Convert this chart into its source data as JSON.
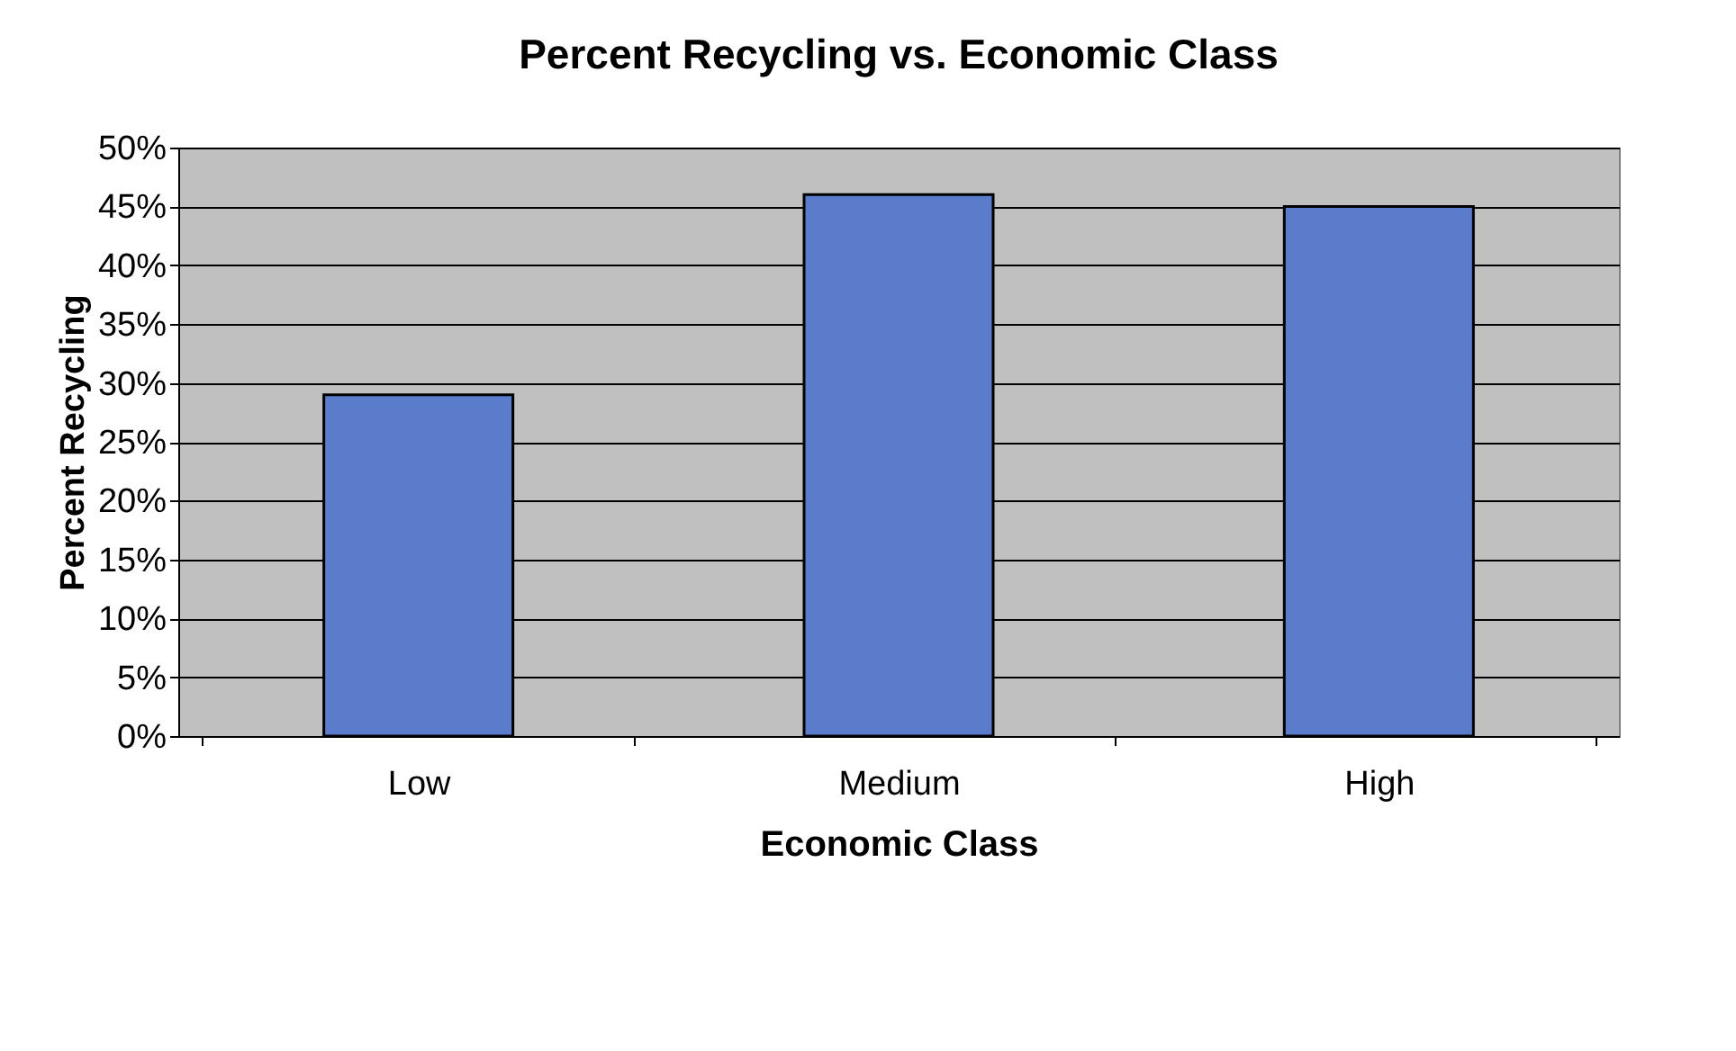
{
  "chart_data": {
    "type": "bar",
    "title": "Percent Recycling vs. Economic Class",
    "xlabel": "Economic Class",
    "ylabel": "Percent Recycling",
    "categories": [
      "Low",
      "Medium",
      "High"
    ],
    "values": [
      29,
      46,
      45
    ],
    "color": "#5a7ccb",
    "ylim": [
      0,
      50
    ],
    "yticks": [
      {
        "value": 0,
        "label": "0%"
      },
      {
        "value": 5,
        "label": "5%"
      },
      {
        "value": 10,
        "label": "10%"
      },
      {
        "value": 15,
        "label": "15%"
      },
      {
        "value": 20,
        "label": "20%"
      },
      {
        "value": 25,
        "label": "25%"
      },
      {
        "value": 30,
        "label": "30%"
      },
      {
        "value": 35,
        "label": "35%"
      },
      {
        "value": 40,
        "label": "40%"
      },
      {
        "value": 45,
        "label": "45%"
      },
      {
        "value": 50,
        "label": "50%"
      }
    ],
    "grid": "y"
  }
}
